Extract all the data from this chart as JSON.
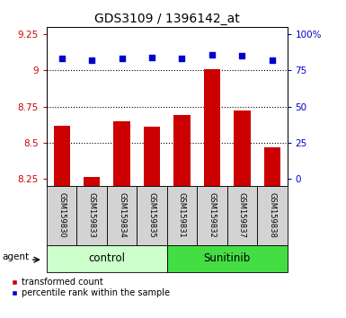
{
  "title": "GDS3109 / 1396142_at",
  "samples": [
    "GSM159830",
    "GSM159833",
    "GSM159834",
    "GSM159835",
    "GSM159831",
    "GSM159832",
    "GSM159837",
    "GSM159838"
  ],
  "bar_values": [
    8.62,
    8.26,
    8.65,
    8.61,
    8.69,
    9.01,
    8.72,
    8.47
  ],
  "percentile_values": [
    83,
    82,
    83,
    84,
    83,
    86,
    85,
    82
  ],
  "groups": [
    {
      "label": "control",
      "indices": [
        0,
        1,
        2,
        3
      ],
      "color": "#ccffcc",
      "border": "#000000"
    },
    {
      "label": "Sunitinib",
      "indices": [
        4,
        5,
        6,
        7
      ],
      "color": "#44dd44",
      "border": "#000000"
    }
  ],
  "bar_color": "#cc0000",
  "scatter_color": "#0000cc",
  "ylim_left": [
    8.2,
    9.3
  ],
  "ylim_right": [
    -4.4,
    110
  ],
  "yticks_left": [
    8.25,
    8.5,
    8.75,
    9.0,
    9.25
  ],
  "ytick_labels_left": [
    "8.25",
    "8.5",
    "8.75",
    "9",
    "9.25"
  ],
  "yticks_right": [
    0,
    25,
    50,
    75,
    100
  ],
  "ytick_labels_right": [
    "0",
    "25",
    "50",
    "75",
    "100%"
  ],
  "hlines": [
    8.5,
    8.75,
    9.0
  ],
  "background_color": "#ffffff",
  "plot_bg_color": "#ffffff",
  "left_tick_color": "#cc0000",
  "right_tick_color": "#0000cc",
  "agent_label": "agent",
  "bar_legend": "transformed count",
  "scatter_legend": "percentile rank within the sample",
  "title_fontsize": 10,
  "tick_fontsize": 7.5,
  "sample_fontsize": 6,
  "group_label_fontsize": 8.5,
  "legend_fontsize": 7
}
